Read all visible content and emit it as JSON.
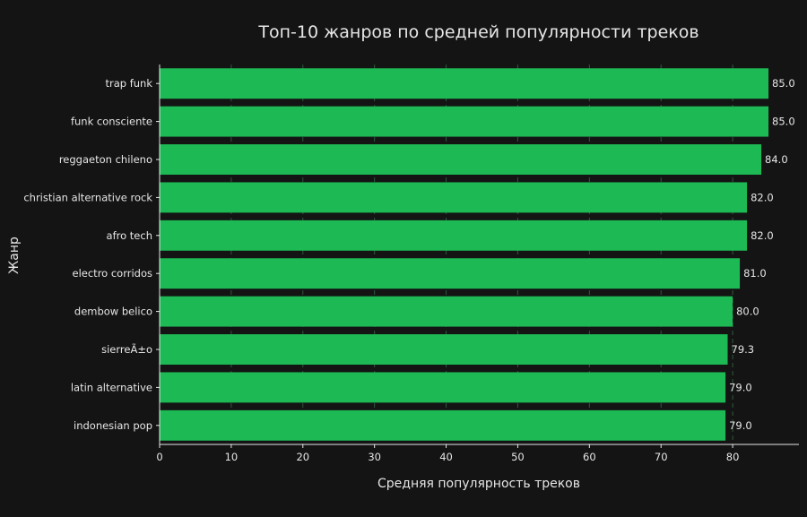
{
  "chart_data": {
    "type": "bar",
    "orientation": "horizontal",
    "title": "Топ-10 жанров по средней популярности треков",
    "xlabel": "Средняя популярность треков",
    "ylabel": "Жанр",
    "categories": [
      "trap funk",
      "funk consciente",
      "reggaeton chileno",
      "christian alternative rock",
      "afro tech",
      "electro corridos",
      "dembow belico",
      "sierreÃ±o",
      "latin alternative",
      "indonesian pop"
    ],
    "values": [
      85.0,
      85.0,
      84.0,
      82.0,
      82.0,
      81.0,
      80.0,
      79.3,
      79.0,
      79.0
    ],
    "value_labels": [
      "85.0",
      "85.0",
      "84.0",
      "82.0",
      "82.0",
      "81.0",
      "80.0",
      "79.3",
      "79.0",
      "79.0"
    ],
    "xlim": [
      0,
      89.25
    ],
    "xticks": [
      0,
      10,
      20,
      30,
      40,
      50,
      60,
      70,
      80
    ],
    "grid": "x, dashed",
    "bar_color": "#1DB954",
    "background_color": "#141414",
    "text_color": "#E6E6E6",
    "grid_color": "#2E5A3A"
  }
}
